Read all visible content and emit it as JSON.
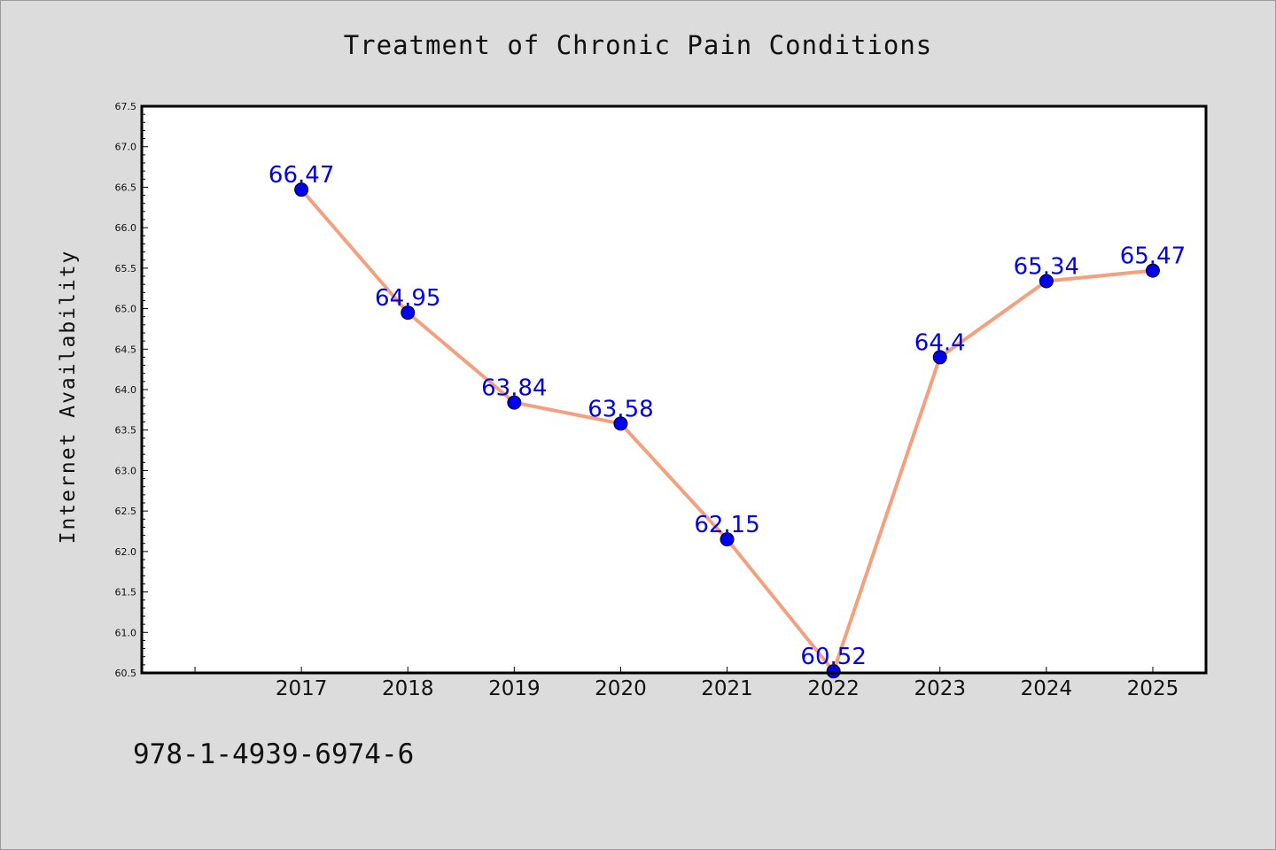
{
  "title": "Treatment of Chronic Pain Conditions",
  "footer_code": "978-1-4939-6974-6",
  "colors": {
    "background": "#dcdcdc",
    "plot_bg": "#ffffff",
    "line": "#f4a07e",
    "marker": "#0000ee",
    "label": "#0000ee"
  },
  "chart_data": {
    "type": "line",
    "title": "Treatment of Chronic Pain Conditions",
    "xlabel": "",
    "ylabel": "Internet Availability",
    "categories": [
      "2017",
      "2018",
      "2019",
      "2020",
      "2021",
      "2022",
      "2023",
      "2024",
      "2025"
    ],
    "series": [
      {
        "values": [
          66.47,
          64.95,
          63.84,
          63.58,
          62.15,
          60.52,
          64.4,
          65.34,
          65.47
        ]
      }
    ],
    "data_labels": [
      "66.47",
      "64.95",
      "63.84",
      "63.58",
      "62.15",
      "60.52",
      "64.4",
      "65.34",
      "65.47"
    ],
    "ylim": [
      60.5,
      67.5
    ],
    "yticks": [
      "60.5",
      "61.0",
      "61.5",
      "62.0",
      "62.5",
      "63.0",
      "63.5",
      "64.0",
      "64.5",
      "65.0",
      "65.5",
      "66.0",
      "66.5",
      "67.0",
      "67.5"
    ],
    "grid": false,
    "legend": "none"
  }
}
